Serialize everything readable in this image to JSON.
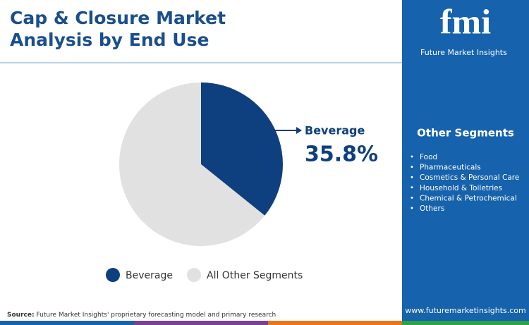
{
  "chart_data": {
    "type": "pie",
    "title": "Cap & Closure Market Analysis by End Use",
    "categories": [
      "Beverage",
      "All Other Segments"
    ],
    "values": [
      35.8,
      64.2
    ],
    "value_labels": [
      "35.8%",
      null
    ],
    "colors": [
      "#0e3f7e",
      "#e1e1e1"
    ],
    "legend": "bottom"
  },
  "sidebar": {
    "logo": "fmi",
    "brand": "Future Market Insights",
    "heading": "Other Segments",
    "items": [
      "Food",
      "Pharmaceuticals",
      "Cosmetics & Personal Care",
      "Household & Toiletries",
      "Chemical & Petrochemical",
      "Others"
    ],
    "website": "www.futuremarketinsights.com"
  },
  "source": {
    "label": "Source:",
    "text": "Future Market Insights' proprietary forecasting model and primary research"
  }
}
